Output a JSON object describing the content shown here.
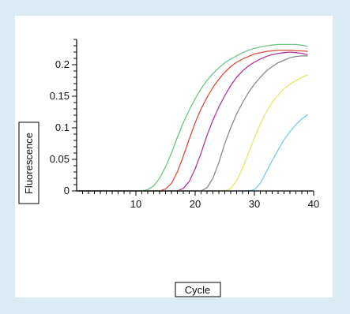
{
  "chart_data": {
    "type": "line",
    "xlabel": "Cycle",
    "ylabel": "Fluorescence",
    "xlim": [
      0,
      40
    ],
    "ylim": [
      0,
      0.24
    ],
    "x_ticks": [
      "10",
      "20",
      "30",
      "40"
    ],
    "y_ticks": [
      "0",
      "0.05",
      "0.1",
      "0.15",
      "0.2"
    ],
    "x_tick_values": [
      10,
      20,
      30,
      40
    ],
    "y_tick_values": [
      0,
      0.05,
      0.1,
      0.15,
      0.2
    ],
    "grid": false,
    "legend": "none",
    "series": [
      {
        "color": "#6fc48a",
        "x": [
          0,
          10,
          11,
          12,
          13,
          14,
          15,
          16,
          17,
          18,
          19,
          20,
          21,
          22,
          23,
          24,
          25,
          26,
          27,
          28,
          29,
          30,
          31,
          32,
          33,
          34,
          35,
          36,
          37,
          38,
          39
        ],
        "y": [
          0,
          0,
          0,
          0.002,
          0.008,
          0.02,
          0.038,
          0.06,
          0.085,
          0.108,
          0.128,
          0.146,
          0.162,
          0.175,
          0.186,
          0.195,
          0.203,
          0.209,
          0.214,
          0.219,
          0.223,
          0.226,
          0.228,
          0.23,
          0.231,
          0.232,
          0.232,
          0.232,
          0.232,
          0.231,
          0.229
        ]
      },
      {
        "color": "#d9503f",
        "x": [
          0,
          14,
          15,
          16,
          17,
          18,
          19,
          20,
          21,
          22,
          23,
          24,
          25,
          26,
          27,
          28,
          29,
          30,
          31,
          32,
          33,
          34,
          35,
          36,
          37,
          38,
          39
        ],
        "y": [
          0,
          0,
          0.003,
          0.012,
          0.03,
          0.055,
          0.082,
          0.108,
          0.13,
          0.148,
          0.164,
          0.177,
          0.188,
          0.197,
          0.204,
          0.209,
          0.213,
          0.217,
          0.219,
          0.221,
          0.222,
          0.223,
          0.223,
          0.223,
          0.222,
          0.222,
          0.221
        ]
      },
      {
        "color": "#b2389a",
        "x": [
          0,
          17,
          18,
          19,
          20,
          21,
          22,
          23,
          24,
          25,
          26,
          27,
          28,
          29,
          30,
          31,
          32,
          33,
          34,
          35,
          36,
          37,
          38,
          39
        ],
        "y": [
          0,
          0,
          0.004,
          0.015,
          0.035,
          0.06,
          0.088,
          0.112,
          0.133,
          0.151,
          0.167,
          0.18,
          0.19,
          0.198,
          0.204,
          0.209,
          0.213,
          0.216,
          0.218,
          0.219,
          0.22,
          0.219,
          0.218,
          0.216
        ]
      },
      {
        "color": "#8a8a8a",
        "x": [
          0,
          21,
          22,
          23,
          24,
          25,
          26,
          27,
          28,
          29,
          30,
          31,
          32,
          33,
          34,
          35,
          36,
          37,
          38,
          39
        ],
        "y": [
          0,
          0,
          0.005,
          0.02,
          0.045,
          0.075,
          0.1,
          0.122,
          0.14,
          0.156,
          0.169,
          0.18,
          0.19,
          0.197,
          0.203,
          0.207,
          0.211,
          0.213,
          0.214,
          0.214
        ]
      },
      {
        "color": "#e9e56a",
        "x": [
          0,
          25,
          26,
          27,
          28,
          29,
          30,
          31,
          32,
          33,
          34,
          35,
          36,
          37,
          38,
          39
        ],
        "y": [
          0,
          0,
          0.004,
          0.016,
          0.036,
          0.06,
          0.084,
          0.106,
          0.125,
          0.14,
          0.152,
          0.162,
          0.169,
          0.175,
          0.18,
          0.184
        ]
      },
      {
        "color": "#7ccbe6",
        "x": [
          0,
          29,
          30,
          31,
          32,
          33,
          34,
          35,
          36,
          37,
          38,
          39
        ],
        "y": [
          0,
          0,
          0.002,
          0.012,
          0.03,
          0.048,
          0.065,
          0.081,
          0.094,
          0.105,
          0.114,
          0.121
        ]
      }
    ]
  }
}
